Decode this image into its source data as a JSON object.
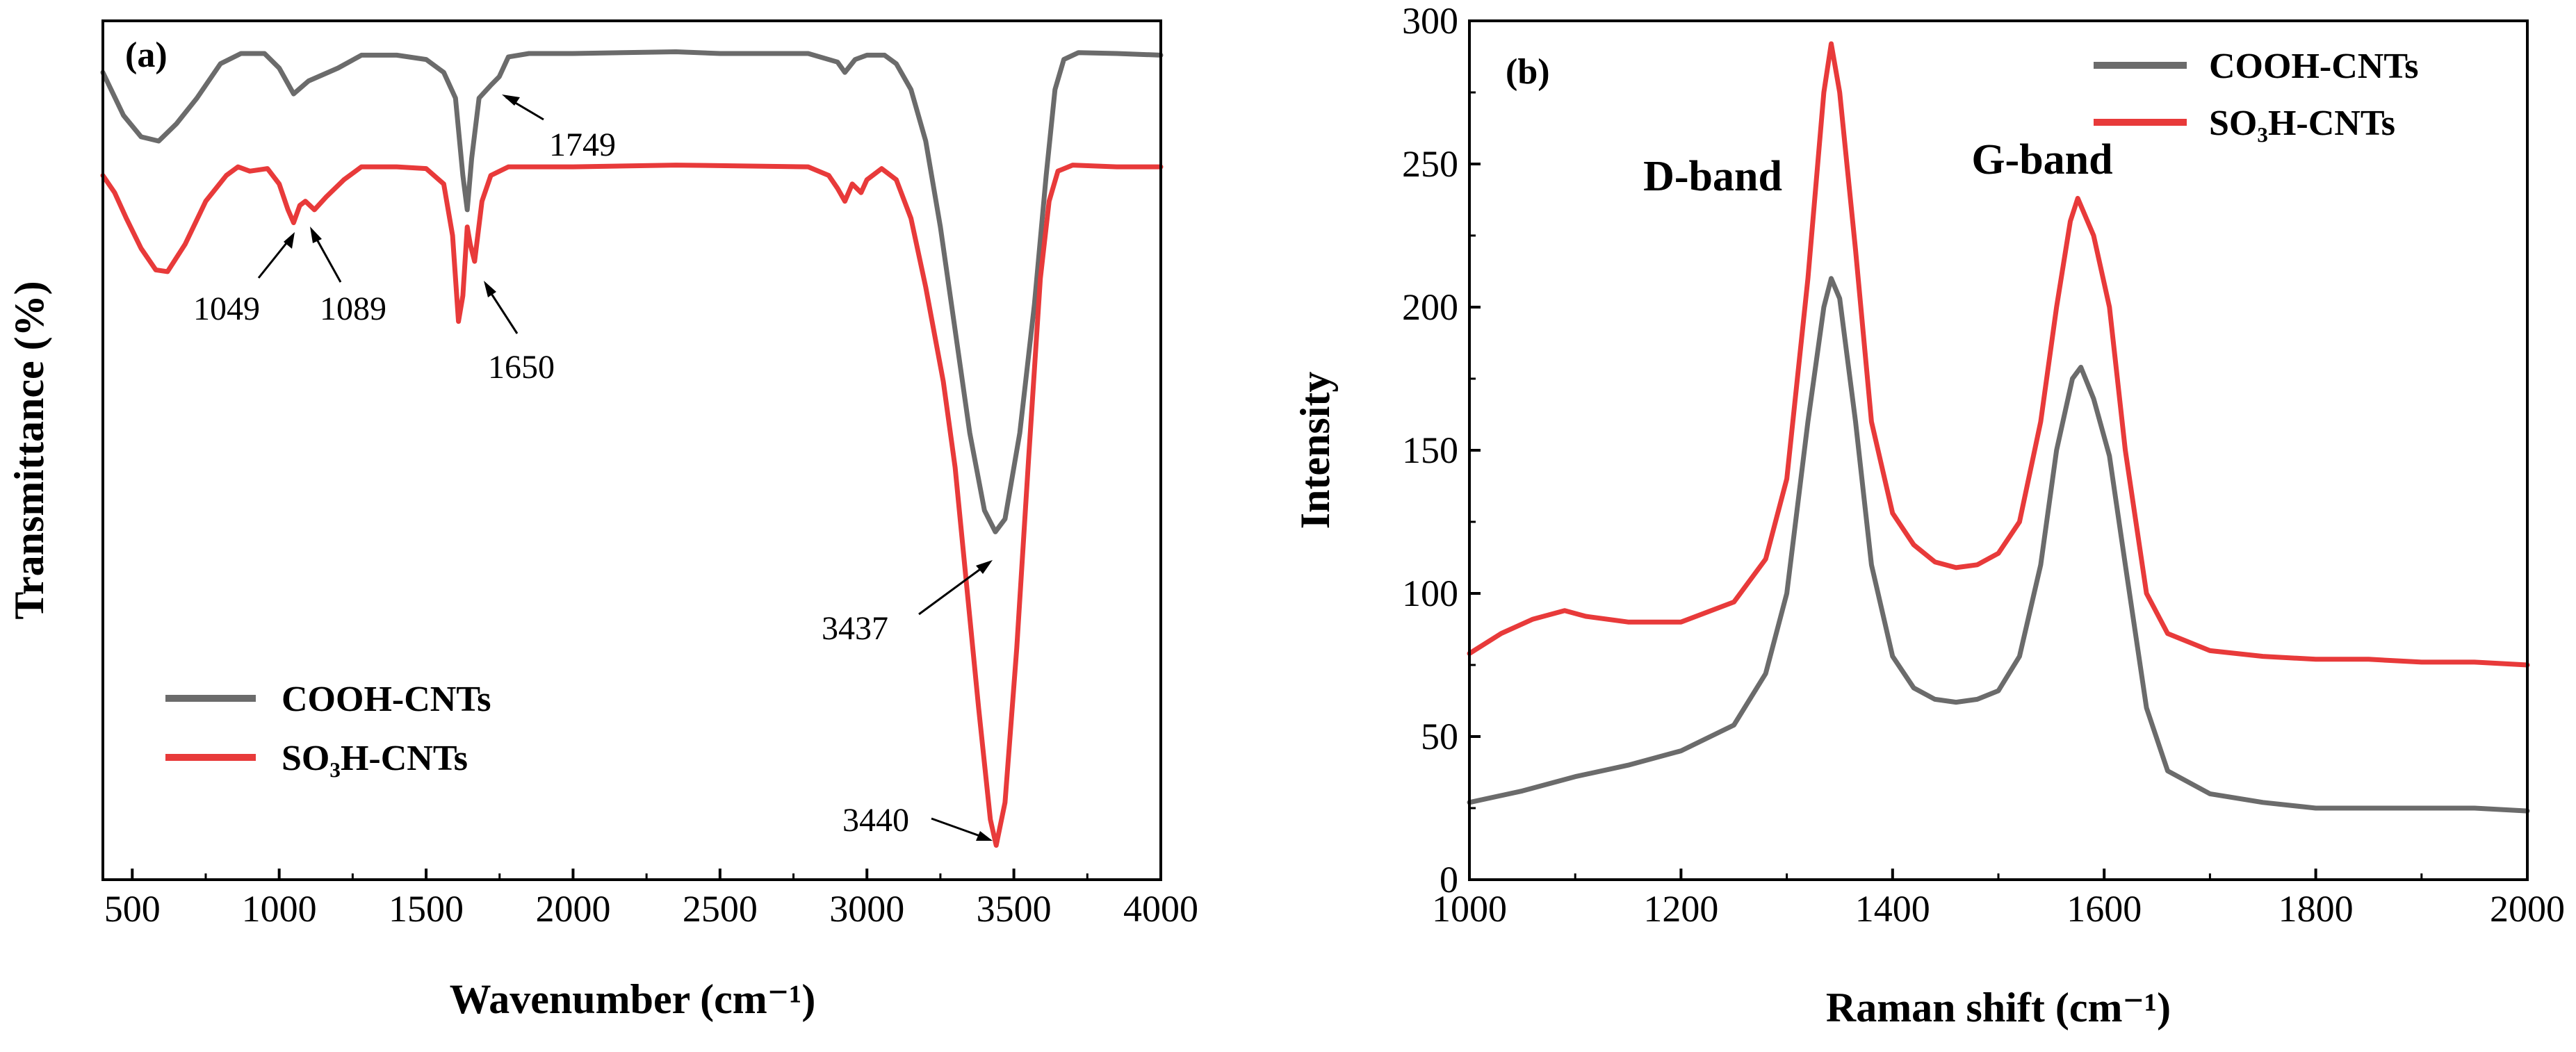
{
  "chart_data": [
    {
      "type": "line",
      "panel_label": "(a)",
      "title": "",
      "xlabel": "Wavenumber (cm⁻¹)",
      "ylabel": "Transmittance (%)",
      "xlim": [
        400,
        4000
      ],
      "ylim": [
        0,
        100
      ],
      "x_ticks": [
        500,
        1000,
        1500,
        2000,
        2500,
        3000,
        3500,
        4000
      ],
      "y_ticks_shown": false,
      "legend": [
        "COOH-CNTs",
        "SO₃H-CNTs"
      ],
      "legend_position": "bottom-left",
      "series": [
        {
          "name": "COOH-CNTs",
          "color": "#6b6b6b",
          "points": [
            [
              400,
              94
            ],
            [
              470,
              89
            ],
            [
              530,
              86.5
            ],
            [
              590,
              86
            ],
            [
              650,
              88
            ],
            [
              720,
              91
            ],
            [
              800,
              95
            ],
            [
              870,
              96.2
            ],
            [
              950,
              96.2
            ],
            [
              1000,
              94.5
            ],
            [
              1049,
              91.5
            ],
            [
              1100,
              93
            ],
            [
              1200,
              94.5
            ],
            [
              1280,
              96
            ],
            [
              1400,
              96
            ],
            [
              1500,
              95.5
            ],
            [
              1560,
              94
            ],
            [
              1600,
              91
            ],
            [
              1625,
              82
            ],
            [
              1640,
              78
            ],
            [
              1655,
              84
            ],
            [
              1680,
              91
            ],
            [
              1720,
              92.5
            ],
            [
              1749,
              93.5
            ],
            [
              1780,
              95.8
            ],
            [
              1850,
              96.2
            ],
            [
              2000,
              96.2
            ],
            [
              2350,
              96.4
            ],
            [
              2500,
              96.2
            ],
            [
              2800,
              96.2
            ],
            [
              2900,
              95.2
            ],
            [
              2925,
              94
            ],
            [
              2960,
              95.5
            ],
            [
              3000,
              96
            ],
            [
              3060,
              96
            ],
            [
              3100,
              95
            ],
            [
              3150,
              92
            ],
            [
              3200,
              86
            ],
            [
              3250,
              76
            ],
            [
              3300,
              64
            ],
            [
              3350,
              52
            ],
            [
              3400,
              43
            ],
            [
              3437,
              40.5
            ],
            [
              3470,
              42
            ],
            [
              3520,
              52
            ],
            [
              3570,
              67
            ],
            [
              3610,
              82
            ],
            [
              3640,
              92
            ],
            [
              3670,
              95.5
            ],
            [
              3720,
              96.3
            ],
            [
              3850,
              96.2
            ],
            [
              4000,
              96
            ]
          ]
        },
        {
          "name": "SO₃H-CNTs",
          "color": "#e83a3a",
          "points": [
            [
              400,
              82
            ],
            [
              440,
              80
            ],
            [
              480,
              77
            ],
            [
              530,
              73.5
            ],
            [
              580,
              71
            ],
            [
              620,
              70.8
            ],
            [
              680,
              74
            ],
            [
              750,
              79
            ],
            [
              820,
              82
            ],
            [
              860,
              83
            ],
            [
              900,
              82.5
            ],
            [
              960,
              82.8
            ],
            [
              1000,
              81
            ],
            [
              1030,
              78
            ],
            [
              1049,
              76.5
            ],
            [
              1070,
              78.5
            ],
            [
              1089,
              79
            ],
            [
              1120,
              78
            ],
            [
              1160,
              79.5
            ],
            [
              1220,
              81.5
            ],
            [
              1280,
              83
            ],
            [
              1400,
              83
            ],
            [
              1500,
              82.8
            ],
            [
              1560,
              81
            ],
            [
              1590,
              75
            ],
            [
              1610,
              65
            ],
            [
              1625,
              68
            ],
            [
              1640,
              76
            ],
            [
              1650,
              74
            ],
            [
              1665,
              72
            ],
            [
              1690,
              79
            ],
            [
              1720,
              82
            ],
            [
              1780,
              83
            ],
            [
              2000,
              83
            ],
            [
              2350,
              83.2
            ],
            [
              2800,
              83
            ],
            [
              2870,
              82
            ],
            [
              2900,
              80.5
            ],
            [
              2925,
              79
            ],
            [
              2950,
              81
            ],
            [
              2980,
              80
            ],
            [
              3000,
              81.5
            ],
            [
              3050,
              82.8
            ],
            [
              3100,
              81.5
            ],
            [
              3150,
              77
            ],
            [
              3200,
              69
            ],
            [
              3260,
              58
            ],
            [
              3300,
              48
            ],
            [
              3340,
              34
            ],
            [
              3380,
              20
            ],
            [
              3420,
              7
            ],
            [
              3440,
              4
            ],
            [
              3470,
              9
            ],
            [
              3510,
              27
            ],
            [
              3550,
              49
            ],
            [
              3590,
              70
            ],
            [
              3620,
              79
            ],
            [
              3650,
              82.5
            ],
            [
              3700,
              83.2
            ],
            [
              3850,
              83
            ],
            [
              4000,
              83
            ]
          ]
        }
      ],
      "annotations": [
        {
          "text": "1749",
          "x": 1749,
          "series": "COOH-CNTs"
        },
        {
          "text": "1049",
          "x": 1049,
          "series": "SO₃H-CNTs"
        },
        {
          "text": "1089",
          "x": 1089,
          "series": "SO₃H-CNTs"
        },
        {
          "text": "1650",
          "x": 1650,
          "series": "SO₃H-CNTs"
        },
        {
          "text": "3437",
          "x": 3437,
          "series": "COOH-CNTs"
        },
        {
          "text": "3440",
          "x": 3440,
          "series": "SO₃H-CNTs"
        }
      ]
    },
    {
      "type": "line",
      "panel_label": "(b)",
      "title": "",
      "xlabel": "Raman shift (cm⁻¹)",
      "ylabel": "Intensity",
      "xlim": [
        1000,
        2000
      ],
      "ylim": [
        0,
        300
      ],
      "x_ticks": [
        1000,
        1200,
        1400,
        1600,
        1800,
        2000
      ],
      "y_ticks": [
        0,
        50,
        100,
        150,
        200,
        250,
        300
      ],
      "legend": [
        "COOH-CNTs",
        "SO₃H-CNTs"
      ],
      "legend_position": "top-right",
      "series": [
        {
          "name": "COOH-CNTs",
          "color": "#6b6b6b",
          "points": [
            [
              1000,
              27
            ],
            [
              1050,
              31
            ],
            [
              1100,
              36
            ],
            [
              1150,
              40
            ],
            [
              1200,
              45
            ],
            [
              1250,
              54
            ],
            [
              1280,
              72
            ],
            [
              1300,
              100
            ],
            [
              1320,
              160
            ],
            [
              1335,
              200
            ],
            [
              1342,
              210
            ],
            [
              1350,
              203
            ],
            [
              1365,
              160
            ],
            [
              1380,
              110
            ],
            [
              1400,
              78
            ],
            [
              1420,
              67
            ],
            [
              1440,
              63
            ],
            [
              1460,
              62
            ],
            [
              1480,
              63
            ],
            [
              1500,
              66
            ],
            [
              1520,
              78
            ],
            [
              1540,
              110
            ],
            [
              1555,
              150
            ],
            [
              1570,
              175
            ],
            [
              1578,
              179
            ],
            [
              1590,
              168
            ],
            [
              1605,
              148
            ],
            [
              1620,
              110
            ],
            [
              1640,
              60
            ],
            [
              1660,
              38
            ],
            [
              1700,
              30
            ],
            [
              1750,
              27
            ],
            [
              1800,
              25
            ],
            [
              1850,
              25
            ],
            [
              1900,
              25
            ],
            [
              1950,
              25
            ],
            [
              2000,
              24
            ]
          ]
        },
        {
          "name": "SO₃H-CNTs",
          "color": "#e83a3a",
          "points": [
            [
              1000,
              79
            ],
            [
              1030,
              86
            ],
            [
              1060,
              91
            ],
            [
              1090,
              94
            ],
            [
              1110,
              92
            ],
            [
              1150,
              90
            ],
            [
              1200,
              90
            ],
            [
              1250,
              97
            ],
            [
              1280,
              112
            ],
            [
              1300,
              140
            ],
            [
              1320,
              210
            ],
            [
              1335,
              275
            ],
            [
              1342,
              292
            ],
            [
              1350,
              275
            ],
            [
              1365,
              220
            ],
            [
              1380,
              160
            ],
            [
              1400,
              128
            ],
            [
              1420,
              117
            ],
            [
              1440,
              111
            ],
            [
              1460,
              109
            ],
            [
              1480,
              110
            ],
            [
              1500,
              114
            ],
            [
              1520,
              125
            ],
            [
              1540,
              160
            ],
            [
              1555,
              200
            ],
            [
              1568,
              230
            ],
            [
              1575,
              238
            ],
            [
              1590,
              225
            ],
            [
              1605,
              200
            ],
            [
              1620,
              150
            ],
            [
              1640,
              100
            ],
            [
              1660,
              86
            ],
            [
              1700,
              80
            ],
            [
              1750,
              78
            ],
            [
              1800,
              77
            ],
            [
              1850,
              77
            ],
            [
              1900,
              76
            ],
            [
              1950,
              76
            ],
            [
              2000,
              75
            ]
          ]
        }
      ],
      "annotations": [
        {
          "text": "D-band",
          "x": 1340,
          "y": 246
        },
        {
          "text": "G-band",
          "x": 1577,
          "y": 248
        }
      ]
    }
  ]
}
